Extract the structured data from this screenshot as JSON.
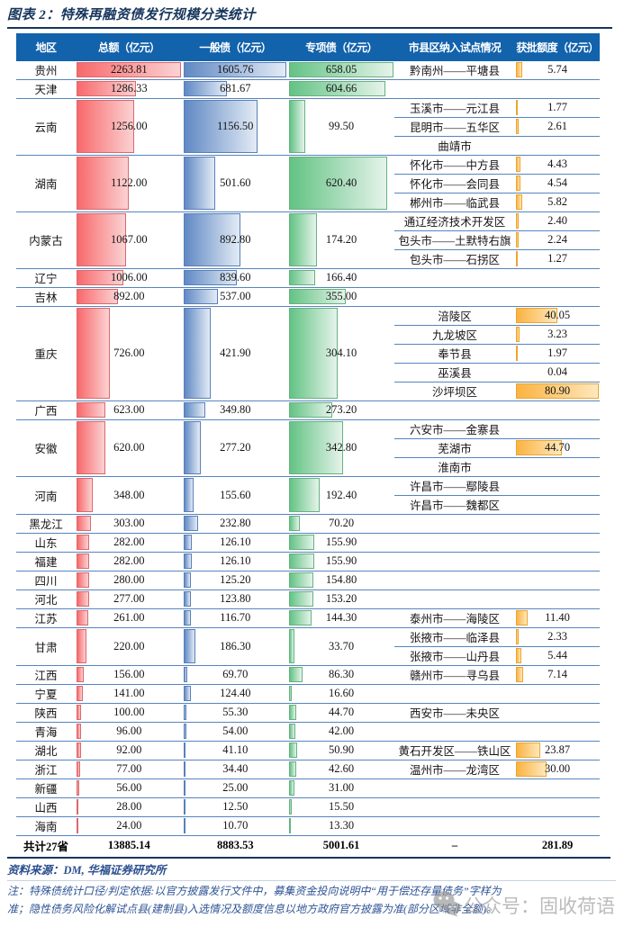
{
  "title": "图表 2：特殊再融资债发行规模分类统计",
  "source": "资料来源：DM, 华福证券研究所",
  "notes": [
    "注：特殊债统计口径/判定依据:以官方披露发行文件中，募集资金投向说明中“用于偿还存量债务”字样为",
    "准；隐性债务风险化解试点县(建制县)入选情况及额度信息以地方政府官方披露为准(部分区域非全额)。"
  ],
  "watermark": {
    "icon": "wechat-icon",
    "label": "公众号：固收荷语"
  },
  "colors": {
    "title_navy": "#17365D",
    "header_blue": "#1262AC",
    "grid_blue": "#4F81BD",
    "bar_red": "#F8696B",
    "bar_blue": "#6089C4",
    "bar_green": "#63C384",
    "bar_orange": "#FBB341",
    "note_blue": "#2E5395"
  },
  "chart_data": {
    "type": "table",
    "title": "特殊再融资债发行规模分类统计",
    "columns": [
      "地区",
      "总额（亿元）",
      "一般债（亿元）",
      "专项债（亿元）",
      "市县区纳入试点情况",
      "获批额度（亿元）"
    ],
    "bar_max": {
      "total": 2263.81,
      "general": 1605.76,
      "special": 658.05,
      "quota": 80.9
    },
    "rows": [
      {
        "region": "贵州",
        "total": "2263.81",
        "general": "1605.76",
        "special": "658.05",
        "pilots": [
          {
            "name": "黔南州——平塘县",
            "quota": "5.74"
          }
        ]
      },
      {
        "region": "天津",
        "total": "1286.33",
        "general": "681.67",
        "special": "604.66",
        "pilots": []
      },
      {
        "region": "云南",
        "total": "1256.00",
        "general": "1156.50",
        "special": "99.50",
        "pilots": [
          {
            "name": "玉溪市——元江县",
            "quota": "1.77"
          },
          {
            "name": "昆明市——五华区",
            "quota": "2.61"
          },
          {
            "name": "曲靖市",
            "quota": ""
          }
        ]
      },
      {
        "region": "湖南",
        "total": "1122.00",
        "general": "501.60",
        "special": "620.40",
        "pilots": [
          {
            "name": "怀化市——中方县",
            "quota": "4.43"
          },
          {
            "name": "怀化市——会同县",
            "quota": "4.54"
          },
          {
            "name": "郴州市——临武县",
            "quota": "5.82"
          }
        ]
      },
      {
        "region": "内蒙古",
        "total": "1067.00",
        "general": "892.80",
        "special": "174.20",
        "pilots": [
          {
            "name": "通辽经济技术开发区",
            "quota": "2.40"
          },
          {
            "name": "包头市——土默特右旗",
            "quota": "2.24"
          },
          {
            "name": "包头市——石拐区",
            "quota": "1.27"
          }
        ]
      },
      {
        "region": "辽宁",
        "total": "1006.00",
        "general": "839.60",
        "special": "166.40",
        "pilots": []
      },
      {
        "region": "吉林",
        "total": "892.00",
        "general": "537.00",
        "special": "355.00",
        "pilots": []
      },
      {
        "region": "重庆",
        "total": "726.00",
        "general": "421.90",
        "special": "304.10",
        "pilots": [
          {
            "name": "涪陵区",
            "quota": "40.05"
          },
          {
            "name": "九龙坡区",
            "quota": "3.23"
          },
          {
            "name": "奉节县",
            "quota": "1.97"
          },
          {
            "name": "巫溪县",
            "quota": "0.04"
          },
          {
            "name": "沙坪坝区",
            "quota": "80.90"
          }
        ]
      },
      {
        "region": "广西",
        "total": "623.00",
        "general": "349.80",
        "special": "273.20",
        "pilots": []
      },
      {
        "region": "安徽",
        "total": "620.00",
        "general": "277.20",
        "special": "342.80",
        "pilots": [
          {
            "name": "六安市——金寨县",
            "quota": ""
          },
          {
            "name": "芜湖市",
            "quota": "44.70"
          },
          {
            "name": "淮南市",
            "quota": ""
          }
        ]
      },
      {
        "region": "河南",
        "total": "348.00",
        "general": "155.60",
        "special": "192.40",
        "pilots": [
          {
            "name": "许昌市——鄢陵县",
            "quota": ""
          },
          {
            "name": "许昌市——魏都区",
            "quota": ""
          }
        ]
      },
      {
        "region": "黑龙江",
        "total": "303.00",
        "general": "232.80",
        "special": "70.20",
        "pilots": []
      },
      {
        "region": "山东",
        "total": "282.00",
        "general": "126.10",
        "special": "155.90",
        "pilots": []
      },
      {
        "region": "福建",
        "total": "282.00",
        "general": "126.10",
        "special": "155.90",
        "pilots": []
      },
      {
        "region": "四川",
        "total": "280.00",
        "general": "125.20",
        "special": "154.80",
        "pilots": []
      },
      {
        "region": "河北",
        "total": "277.00",
        "general": "123.80",
        "special": "153.20",
        "pilots": []
      },
      {
        "region": "江苏",
        "total": "261.00",
        "general": "116.70",
        "special": "144.30",
        "pilots": [
          {
            "name": "泰州市——海陵区",
            "quota": "11.40"
          }
        ]
      },
      {
        "region": "甘肃",
        "total": "220.00",
        "general": "186.30",
        "special": "33.70",
        "pilots": [
          {
            "name": "张掖市——临泽县",
            "quota": "2.33"
          },
          {
            "name": "张掖市——山丹县",
            "quota": "5.44"
          }
        ]
      },
      {
        "region": "江西",
        "total": "156.00",
        "general": "69.70",
        "special": "86.30",
        "pilots": [
          {
            "name": "赣州市——寻乌县",
            "quota": "7.14"
          }
        ]
      },
      {
        "region": "宁夏",
        "total": "141.00",
        "general": "124.40",
        "special": "16.60",
        "pilots": []
      },
      {
        "region": "陕西",
        "total": "100.00",
        "general": "55.30",
        "special": "44.70",
        "pilots": [
          {
            "name": "西安市——未央区",
            "quota": ""
          }
        ]
      },
      {
        "region": "青海",
        "total": "96.00",
        "general": "54.00",
        "special": "42.00",
        "pilots": []
      },
      {
        "region": "湖北",
        "total": "92.00",
        "general": "41.10",
        "special": "50.90",
        "pilots": [
          {
            "name": "黄石开发区——铁山区",
            "quota": "23.87"
          }
        ]
      },
      {
        "region": "浙江",
        "total": "77.00",
        "general": "34.40",
        "special": "42.60",
        "pilots": [
          {
            "name": "温州市——龙湾区",
            "quota": "30.00"
          }
        ]
      },
      {
        "region": "新疆",
        "total": "56.00",
        "general": "25.00",
        "special": "31.00",
        "pilots": []
      },
      {
        "region": "山西",
        "total": "28.00",
        "general": "12.50",
        "special": "15.50",
        "pilots": []
      },
      {
        "region": "海南",
        "total": "24.00",
        "general": "10.70",
        "special": "13.30",
        "pilots": []
      }
    ],
    "total_row": {
      "region": "共计27省",
      "total": "13885.14",
      "general": "8883.53",
      "special": "5001.61",
      "pilot": "–",
      "quota": "281.89"
    }
  }
}
